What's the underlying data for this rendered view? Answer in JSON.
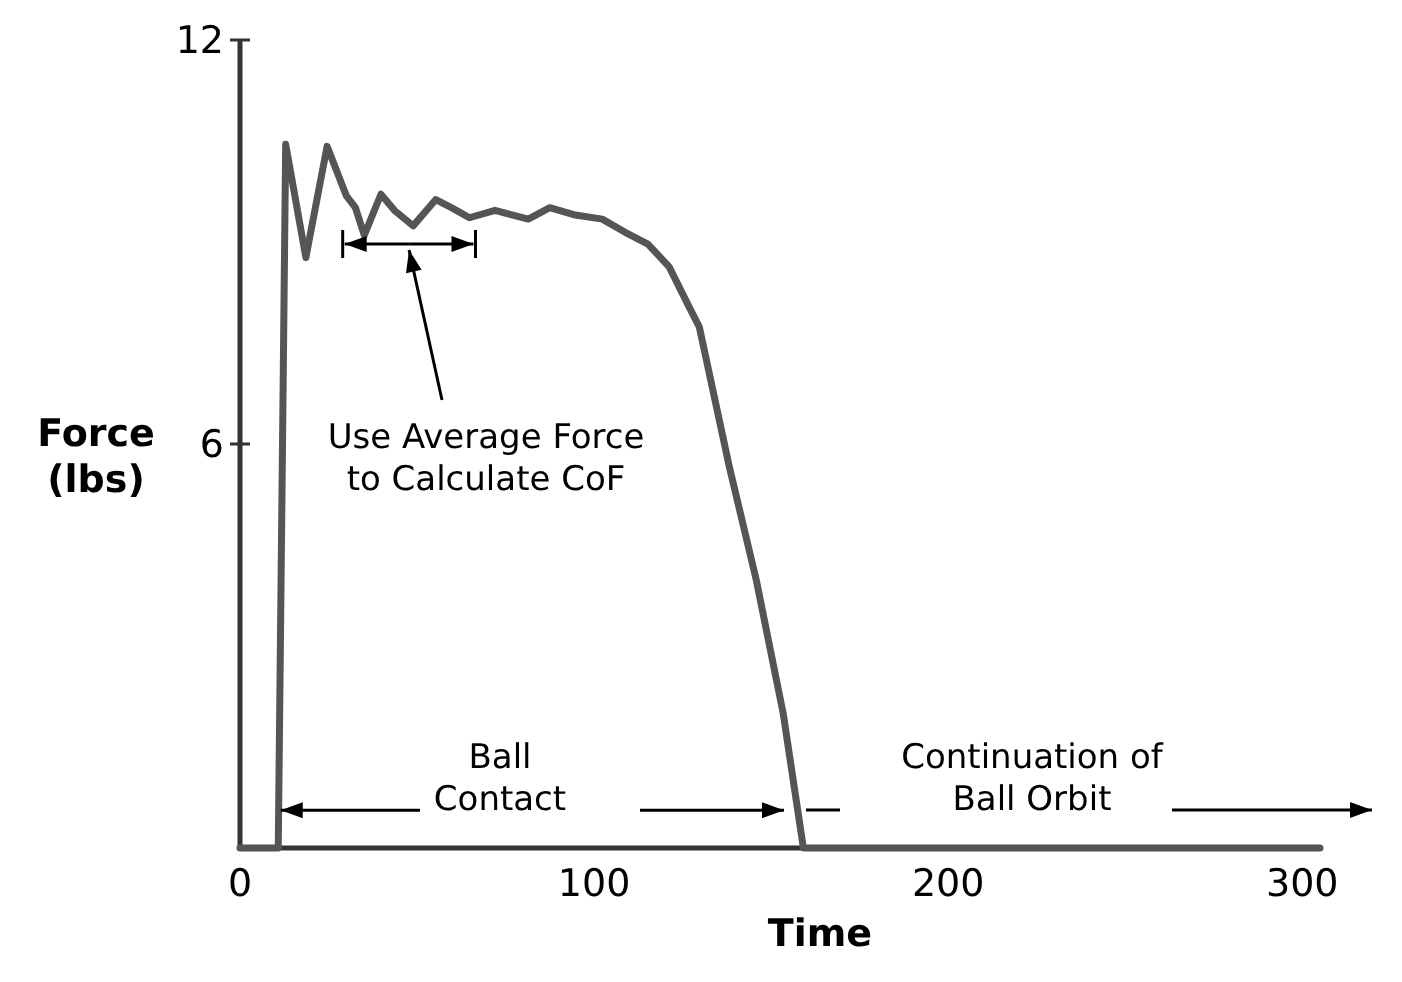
{
  "chart_data": {
    "type": "line",
    "xlabel": "Time",
    "ylabel": "Force\n(lbs)",
    "xlim": [
      0,
      305
    ],
    "ylim": [
      0,
      12
    ],
    "xticks": [
      0,
      100,
      200,
      300
    ],
    "yticks": [
      6,
      12
    ],
    "grid": false,
    "marker": "none",
    "line_style": "solid",
    "series": [
      {
        "color": "#555555",
        "x": [
          0,
          10.8,
          12.9,
          18.6,
          24.6,
          30,
          32.6,
          35.1,
          39.8,
          43.6,
          48.9,
          55.3,
          59.7,
          64.8,
          72,
          81.4,
          87.5,
          94.7,
          102.3,
          108.9,
          115.2,
          121.2,
          126.9,
          129.7,
          138.2,
          145.8,
          153.4,
          159.1,
          305
        ],
        "values": [
          0,
          0,
          10.45,
          8.77,
          10.42,
          9.69,
          9.51,
          9.1,
          9.71,
          9.47,
          9.24,
          9.63,
          9.51,
          9.36,
          9.47,
          9.34,
          9.51,
          9.4,
          9.34,
          9.14,
          8.97,
          8.63,
          8.03,
          7.74,
          5.66,
          3.98,
          2.0,
          0,
          0
        ]
      }
    ],
    "annotations": [
      "Use Average Force\nto Calculate CoF",
      {
        "text": "Ball\nContact",
        "x": 11.5,
        "y": 0.56
      },
      "Continuation of\nBall Orbit"
    ]
  }
}
